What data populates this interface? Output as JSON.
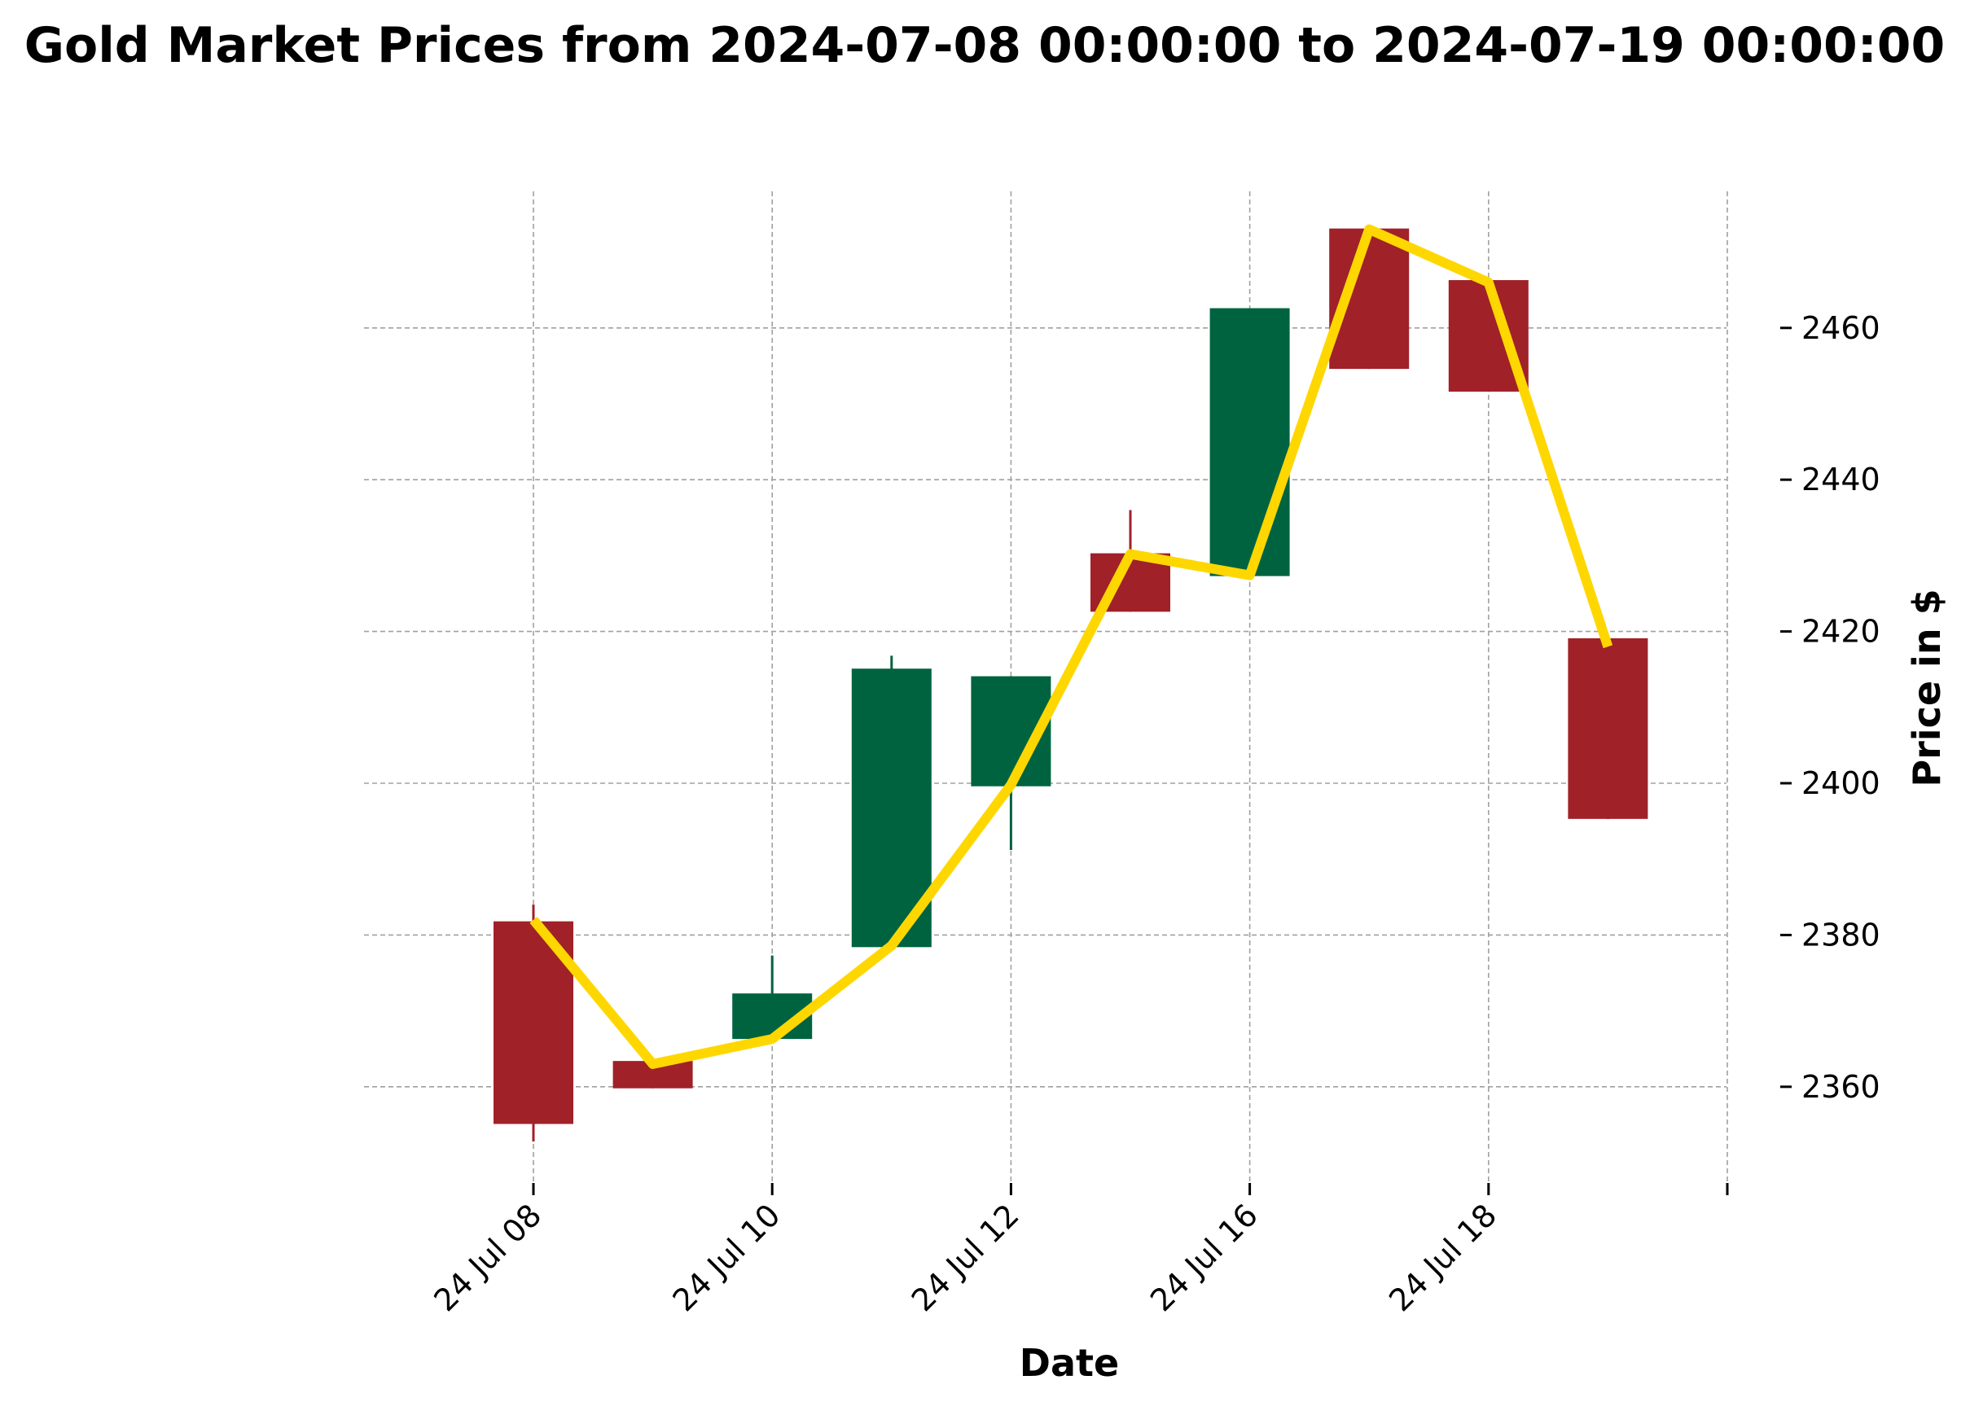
{
  "chart_data": {
    "type": "candlestick",
    "title": "Gold Market Prices from 2024-07-08 00:00:00 to 2024-07-19 00:00:00",
    "xlabel": "Date",
    "ylabel": "Price in $",
    "x_tick_labels": [
      "24 Jul 08",
      "24 Jul 10",
      "24 Jul 12",
      "24 Jul 16",
      "24 Jul 18"
    ],
    "y_ticks": [
      2360,
      2380,
      2400,
      2420,
      2440,
      2460
    ],
    "ylim": [
      2347,
      2478
    ],
    "grid": true,
    "y_axis_side": "right",
    "candles": [
      {
        "date": "2024-07-08",
        "open": 2381.8,
        "high": 2384.0,
        "low": 2352.8,
        "close": 2355.1
      },
      {
        "date": "2024-07-09",
        "open": 2363.4,
        "high": 2363.4,
        "low": 2359.8,
        "close": 2359.8
      },
      {
        "date": "2024-07-10",
        "open": 2366.3,
        "high": 2377.3,
        "low": 2366.3,
        "close": 2372.3
      },
      {
        "date": "2024-07-11",
        "open": 2378.4,
        "high": 2416.8,
        "low": 2378.4,
        "close": 2415.1
      },
      {
        "date": "2024-07-12",
        "open": 2399.6,
        "high": 2414.1,
        "low": 2391.2,
        "close": 2414.1
      },
      {
        "date": "2024-07-15",
        "open": 2430.3,
        "high": 2436.0,
        "low": 2422.6,
        "close": 2422.6
      },
      {
        "date": "2024-07-16",
        "open": 2427.3,
        "high": 2462.6,
        "low": 2427.3,
        "close": 2462.6
      },
      {
        "date": "2024-07-17",
        "open": 2473.1,
        "high": 2473.1,
        "low": 2454.6,
        "close": 2454.6
      },
      {
        "date": "2024-07-18",
        "open": 2466.3,
        "high": 2466.3,
        "low": 2451.6,
        "close": 2451.6
      },
      {
        "date": "2024-07-19",
        "open": 2419.1,
        "high": 2419.1,
        "low": 2395.3,
        "close": 2395.3
      }
    ],
    "line_values": [
      2382.0,
      2363.0,
      2366.3,
      2378.6,
      2399.8,
      2430.2,
      2427.4,
      2473.0,
      2466.0,
      2418.0
    ],
    "colors": {
      "up": "#006340",
      "down": "#a02128",
      "line": "#ffd700",
      "grid": "#a0a0a0"
    }
  }
}
